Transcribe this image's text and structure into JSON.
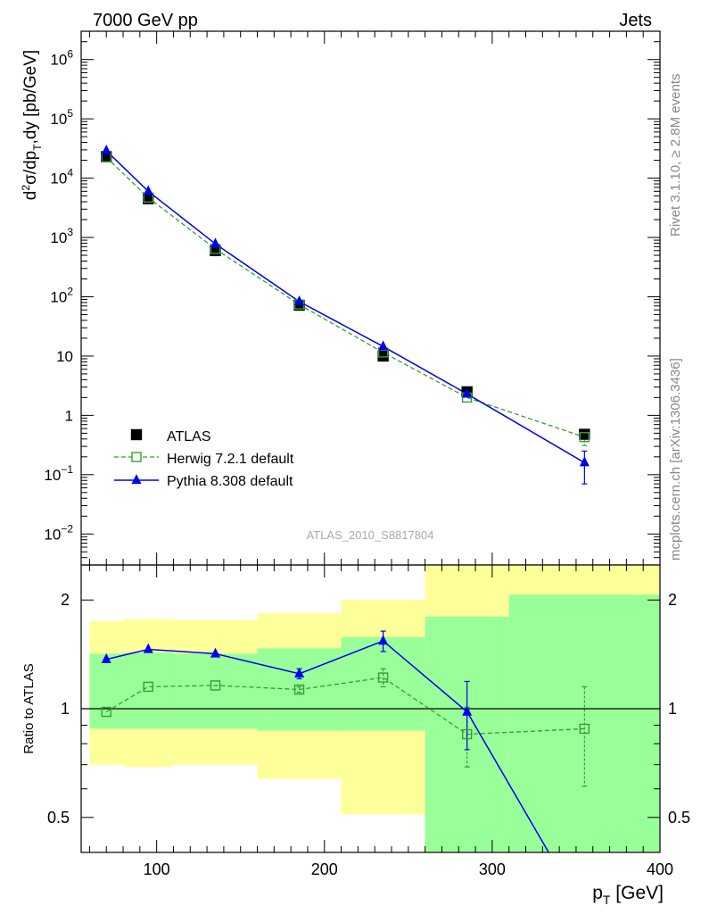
{
  "header": {
    "left": "7000 GeV pp",
    "right": "Jets"
  },
  "side_labels": {
    "top": "Rivet 3.1.10, ≥ 2.8M events",
    "bottom": "mcplots.cern.ch [arXiv:1306.3436]"
  },
  "analysis_label": "ATLAS_2010_S8817804",
  "colors": {
    "herwig": "#33a02c",
    "pythia": "#0000ee",
    "data": "#000000",
    "band_outer": "#ffff99",
    "band_inner": "#99ff99"
  },
  "chart_data": [
    {
      "type": "scatter",
      "panel": "main",
      "x_scale": "linear",
      "y_scale": "log",
      "ylabel": "d²σ/dp_T,dy [pb/GeV]",
      "xlim": [
        55,
        400
      ],
      "ylim": [
        0.003,
        3000000
      ],
      "y_ticks": [
        {
          "value": 0.01,
          "label": "10",
          "exp": "−2"
        },
        {
          "value": 0.1,
          "label": "10",
          "exp": "−1"
        },
        {
          "value": 1,
          "label": "1",
          "exp": ""
        },
        {
          "value": 10,
          "label": "10",
          "exp": ""
        },
        {
          "value": 100,
          "label": "10",
          "exp": "2"
        },
        {
          "value": 1000,
          "label": "10",
          "exp": "3"
        },
        {
          "value": 10000,
          "label": "10",
          "exp": "4"
        },
        {
          "value": 100000,
          "label": "10",
          "exp": "5"
        },
        {
          "value": 1000000,
          "label": "10",
          "exp": "6"
        }
      ],
      "legend": {
        "position": "bottom-left",
        "entries": [
          "ATLAS",
          "Herwig 7.2.1 default",
          "Pythia 8.308 default"
        ]
      },
      "series": [
        {
          "name": "ATLAS",
          "x": [
            70,
            95,
            135,
            185,
            235,
            285,
            355
          ],
          "y": [
            23000,
            4500,
            600,
            72,
            10,
            2.5,
            0.48
          ]
        },
        {
          "name": "Herwig 7.2.1 default",
          "x": [
            70,
            95,
            135,
            185,
            235,
            285,
            355
          ],
          "y": [
            22500,
            4700,
            640,
            74,
            11.5,
            2.0,
            0.43
          ],
          "yerr": [
            0,
            0,
            0,
            0,
            0,
            0,
            0.12
          ]
        },
        {
          "name": "Pythia 8.308 default",
          "x": [
            70,
            95,
            135,
            185,
            235,
            285,
            355
          ],
          "y": [
            29000,
            6000,
            780,
            83,
            14.5,
            2.3,
            0.16
          ],
          "yerr": [
            0,
            0,
            0,
            0,
            0,
            0,
            0.09
          ]
        }
      ]
    },
    {
      "type": "line",
      "panel": "ratio",
      "x_scale": "linear",
      "y_scale": "log",
      "xlabel": "p_T [GeV]",
      "ylabel": "Ratio to ATLAS",
      "xlim": [
        55,
        400
      ],
      "ylim": [
        0.4,
        2.5
      ],
      "x_ticks": [
        100,
        200,
        300,
        400
      ],
      "y_ticks": [
        0.5,
        1,
        2
      ],
      "reference_line": 1,
      "bands": {
        "bins": [
          [
            60,
            80
          ],
          [
            80,
            110
          ],
          [
            110,
            160
          ],
          [
            160,
            210
          ],
          [
            210,
            260
          ],
          [
            260,
            310
          ],
          [
            310,
            400
          ]
        ],
        "outer": [
          [
            0.7,
            1.75
          ],
          [
            0.69,
            1.77
          ],
          [
            0.7,
            1.76
          ],
          [
            0.64,
            1.84
          ],
          [
            0.51,
            2.0
          ],
          [
            0.33,
            2.6
          ],
          [
            0.33,
            2.6
          ]
        ],
        "inner": [
          [
            0.88,
            1.42
          ],
          [
            0.88,
            1.43
          ],
          [
            0.88,
            1.42
          ],
          [
            0.87,
            1.47
          ],
          [
            0.87,
            1.58
          ],
          [
            0.4,
            1.8
          ],
          [
            0.4,
            2.07
          ]
        ]
      },
      "series": [
        {
          "name": "Herwig 7.2.1 default",
          "x": [
            70,
            95,
            135,
            185,
            235,
            285,
            355
          ],
          "y": [
            0.98,
            1.15,
            1.16,
            1.13,
            1.22,
            0.85,
            0.88
          ],
          "yerr": [
            0,
            0,
            0,
            0.02,
            0.07,
            0.16,
            0.27
          ]
        },
        {
          "name": "Pythia 8.308 default",
          "x": [
            70,
            95,
            135,
            185,
            235,
            285,
            355
          ],
          "y": [
            1.37,
            1.46,
            1.42,
            1.25,
            1.54,
            0.98,
            0.27
          ],
          "yerr": [
            0,
            0,
            0,
            0.04,
            0.1,
            0.21,
            0
          ]
        }
      ]
    }
  ]
}
